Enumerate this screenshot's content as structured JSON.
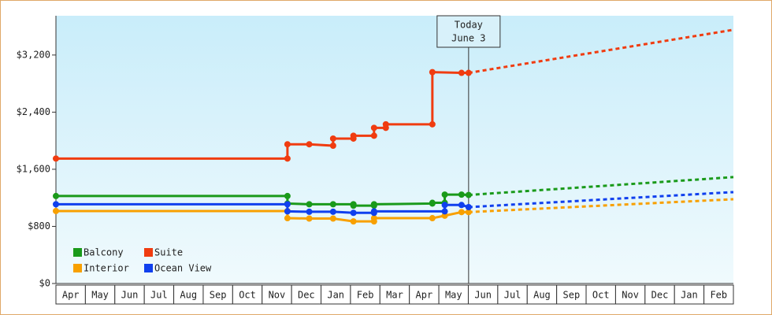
{
  "chart_data": {
    "type": "line",
    "ylim": [
      0,
      3750
    ],
    "yticks": [
      {
        "value": 0,
        "label": "$0"
      },
      {
        "value": 800,
        "label": "$800"
      },
      {
        "value": 1600,
        "label": "$1,600"
      },
      {
        "value": 2400,
        "label": "$2,400"
      },
      {
        "value": 3200,
        "label": "$3,200"
      }
    ],
    "xlim": [
      0,
      23
    ],
    "xticks": [
      {
        "value": 0.5,
        "label": "Apr"
      },
      {
        "value": 1.5,
        "label": "May"
      },
      {
        "value": 2.5,
        "label": "Jun"
      },
      {
        "value": 3.5,
        "label": "Jul"
      },
      {
        "value": 4.5,
        "label": "Aug"
      },
      {
        "value": 5.5,
        "label": "Sep"
      },
      {
        "value": 6.5,
        "label": "Oct"
      },
      {
        "value": 7.5,
        "label": "Nov"
      },
      {
        "value": 8.5,
        "label": "Dec"
      },
      {
        "value": 9.5,
        "label": "Jan"
      },
      {
        "value": 10.5,
        "label": "Feb"
      },
      {
        "value": 11.5,
        "label": "Mar"
      },
      {
        "value": 12.5,
        "label": "Apr"
      },
      {
        "value": 13.5,
        "label": "May"
      },
      {
        "value": 14.5,
        "label": "Jun"
      },
      {
        "value": 15.5,
        "label": "Jul"
      },
      {
        "value": 16.5,
        "label": "Aug"
      },
      {
        "value": 17.5,
        "label": "Sep"
      },
      {
        "value": 18.5,
        "label": "Oct"
      },
      {
        "value": 19.5,
        "label": "Nov"
      },
      {
        "value": 20.5,
        "label": "Dec"
      },
      {
        "value": 21.5,
        "label": "Jan"
      },
      {
        "value": 22.5,
        "label": "Feb"
      }
    ],
    "legend": "lower left",
    "annotation": {
      "x": 14.01,
      "lines": [
        "Today",
        "June 3"
      ]
    },
    "series": [
      {
        "name": "Balcony",
        "color": "#1a9a1a",
        "x": [
          0,
          7.86,
          7.86,
          8.6,
          9.41,
          10.1,
          10.1,
          10.8,
          10.8,
          12.78,
          12.78,
          13.2,
          13.2,
          13.77,
          14.01
        ],
        "values": [
          1225,
          1225,
          1120,
          1110,
          1110,
          1110,
          1090,
          1090,
          1110,
          1120,
          1130,
          1130,
          1245,
          1245,
          1240
        ],
        "forecast": {
          "x": [
            14.01,
            23
          ],
          "values": [
            1240,
            1490
          ]
        }
      },
      {
        "name": "Suite",
        "color": "#f03c10",
        "x": [
          0,
          7.86,
          7.86,
          8.6,
          9.41,
          9.41,
          10.1,
          10.1,
          10.8,
          10.8,
          11.2,
          11.2,
          12.78,
          12.78,
          13.77,
          14.01
        ],
        "values": [
          1750,
          1750,
          1950,
          1950,
          1930,
          2030,
          2030,
          2070,
          2070,
          2180,
          2180,
          2230,
          2230,
          2960,
          2950,
          2950
        ],
        "forecast": {
          "x": [
            14.01,
            23
          ],
          "values": [
            2950,
            3553
          ]
        }
      },
      {
        "name": "Interior",
        "color": "#f8a000",
        "x": [
          0,
          7.86,
          7.86,
          8.6,
          9.41,
          10.1,
          10.8,
          10.8,
          12.78,
          13.2,
          13.77,
          14.01
        ],
        "values": [
          1015,
          1015,
          915,
          910,
          910,
          870,
          870,
          915,
          915,
          950,
          1000,
          1000
        ],
        "forecast": {
          "x": [
            14.01,
            23
          ],
          "values": [
            1000,
            1180
          ]
        }
      },
      {
        "name": "Ocean View",
        "color": "#1040ee",
        "x": [
          0,
          7.86,
          7.86,
          8.6,
          9.41,
          10.1,
          10.8,
          10.8,
          13.2,
          13.2,
          13.77,
          14.01
        ],
        "values": [
          1110,
          1110,
          1010,
          1005,
          1005,
          990,
          990,
          1010,
          1010,
          1100,
          1100,
          1070
        ],
        "forecast": {
          "x": [
            14.01,
            23
          ],
          "values": [
            1070,
            1280
          ]
        }
      }
    ]
  }
}
